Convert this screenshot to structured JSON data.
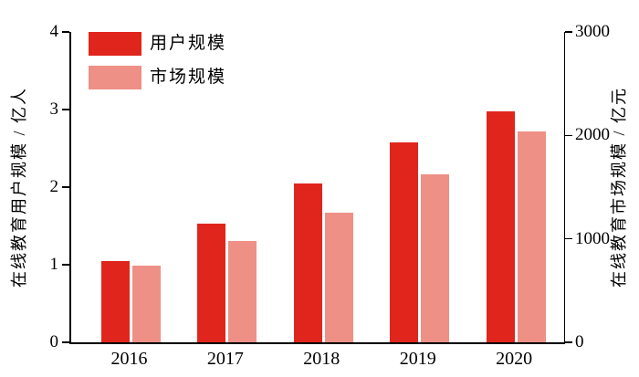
{
  "chart_data": {
    "type": "bar",
    "title": "",
    "categories": [
      "2016",
      "2017",
      "2018",
      "2019",
      "2020"
    ],
    "series": [
      {
        "key": "users",
        "name": "用户规模",
        "axis": "left",
        "color": "#e0261c",
        "values": [
          1.05,
          1.53,
          2.05,
          2.58,
          2.98
        ]
      },
      {
        "key": "market",
        "name": "市场规模",
        "axis": "right",
        "color": "#ee9086",
        "values": [
          745,
          980,
          1255,
          1620,
          2040
        ]
      }
    ],
    "left_axis": {
      "label": "在线教育用户规模 / 亿人",
      "range": [
        0,
        4
      ],
      "ticks": [
        0,
        1,
        2,
        3,
        4
      ]
    },
    "right_axis": {
      "label": "在线教育市场规模 / 亿元",
      "range": [
        0,
        3000
      ],
      "ticks": [
        0,
        1000,
        2000,
        3000
      ]
    },
    "legend_position": "top-left",
    "grid": false,
    "colors": {
      "axis_line": "#000000",
      "text": "#000000",
      "background": "#ffffff"
    }
  }
}
